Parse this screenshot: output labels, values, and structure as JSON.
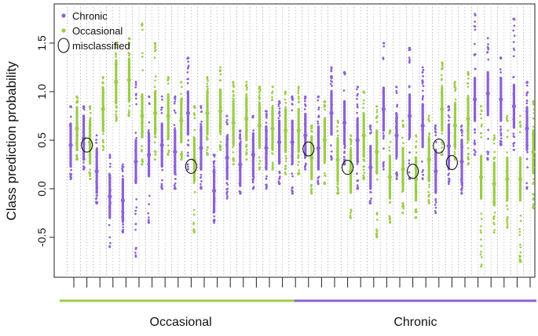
{
  "chart_data": {
    "type": "scatter",
    "title": "",
    "xlabel": "",
    "ylabel": "Class prediction probability",
    "ylim": [
      -0.9,
      1.85
    ],
    "yticks": [
      -0.5,
      0.0,
      0.5,
      1.0,
      1.5
    ],
    "ytick_labels": [
      "-0.5",
      "0.0",
      "0.5",
      "1.0",
      "1.5"
    ],
    "n_columns": 36,
    "grid": "vertical dotted lines per sample",
    "legend": {
      "position": "top-left",
      "entries": [
        {
          "label": "Chronic",
          "color": "#8a63d2",
          "marker": "dot"
        },
        {
          "label": "Occasional",
          "color": "#9ccc4a",
          "marker": "dot"
        },
        {
          "label": "misclassified",
          "color": "#111111",
          "marker": "circle"
        }
      ]
    },
    "groups": [
      {
        "label": "Occasional",
        "color": "#9ccc4a",
        "from_column": 1,
        "to_column": 18
      },
      {
        "label": "Chronic",
        "color": "#8a63d2",
        "from_column": 19,
        "to_column": 36
      }
    ],
    "series": [
      {
        "name": "Chronic",
        "color": "#8a63d2",
        "centers": [
          0.45,
          0.52,
          0.18,
          -0.08,
          -0.12,
          0.28,
          0.35,
          0.45,
          0.38,
          0.78,
          0.42,
          -0.02,
          0.32,
          0.25,
          0.35,
          0.42,
          0.48,
          0.48,
          0.55,
          0.42,
          0.78,
          0.68,
          0.5,
          0.22,
          0.82,
          0.55,
          0.75,
          0.65,
          0.18,
          0.44,
          0.28,
          0.92,
          0.98,
          0.92,
          0.85,
          0.62
        ],
        "ranges": [
          [
            0.1,
            0.85
          ],
          [
            0.2,
            0.85
          ],
          [
            -0.15,
            0.55
          ],
          [
            -0.6,
            0.35
          ],
          [
            -0.45,
            0.25
          ],
          [
            -0.7,
            1.1
          ],
          [
            -0.35,
            0.95
          ],
          [
            0.0,
            0.95
          ],
          [
            0.0,
            0.95
          ],
          [
            0.2,
            1.35
          ],
          [
            0.0,
            0.85
          ],
          [
            -0.35,
            0.35
          ],
          [
            -0.1,
            0.75
          ],
          [
            -0.05,
            0.6
          ],
          [
            0.0,
            0.75
          ],
          [
            0.0,
            0.8
          ],
          [
            0.05,
            0.9
          ],
          [
            -0.05,
            0.95
          ],
          [
            0.2,
            0.95
          ],
          [
            0.05,
            0.95
          ],
          [
            0.3,
            1.25
          ],
          [
            0.25,
            1.2
          ],
          [
            0.0,
            1.05
          ],
          [
            -0.15,
            0.65
          ],
          [
            0.2,
            1.5
          ],
          [
            0.1,
            1.05
          ],
          [
            0.1,
            1.45
          ],
          [
            0.1,
            1.25
          ],
          [
            -0.25,
            0.65
          ],
          [
            0.05,
            0.85
          ],
          [
            -0.05,
            0.65
          ],
          [
            0.35,
            1.8
          ],
          [
            0.3,
            1.55
          ],
          [
            0.45,
            1.35
          ],
          [
            0.4,
            1.75
          ],
          [
            0.0,
            1.1
          ]
        ]
      },
      {
        "name": "Occasional",
        "color": "#9ccc4a",
        "centers": [
          0.62,
          0.48,
          0.82,
          1.1,
          1.12,
          0.75,
          0.78,
          0.75,
          0.7,
          0.3,
          0.78,
          0.8,
          0.68,
          0.72,
          0.65,
          0.62,
          0.6,
          0.6,
          0.32,
          0.5,
          0.3,
          0.18,
          0.55,
          0.38,
          0.12,
          0.2,
          0.1,
          0.3,
          0.82,
          0.65,
          0.72,
          0.12,
          0.05,
          0.1,
          0.1,
          0.38
        ],
        "ranges": [
          [
            0.3,
            0.95
          ],
          [
            0.1,
            0.85
          ],
          [
            0.4,
            1.15
          ],
          [
            0.7,
            1.5
          ],
          [
            0.75,
            1.55
          ],
          [
            0.25,
            1.7
          ],
          [
            0.3,
            1.5
          ],
          [
            0.35,
            1.15
          ],
          [
            0.3,
            1.1
          ],
          [
            -0.45,
            0.85
          ],
          [
            0.35,
            1.15
          ],
          [
            0.4,
            1.25
          ],
          [
            0.25,
            1.1
          ],
          [
            0.3,
            1.1
          ],
          [
            0.2,
            1.05
          ],
          [
            0.2,
            1.05
          ],
          [
            0.15,
            1.0
          ],
          [
            0.15,
            1.05
          ],
          [
            -0.05,
            0.65
          ],
          [
            0.05,
            0.9
          ],
          [
            -0.05,
            0.7
          ],
          [
            -0.3,
            0.55
          ],
          [
            0.1,
            1.0
          ],
          [
            -0.5,
            0.85
          ],
          [
            -0.35,
            0.6
          ],
          [
            -0.25,
            0.7
          ],
          [
            -0.3,
            0.55
          ],
          [
            -0.15,
            0.75
          ],
          [
            0.35,
            1.3
          ],
          [
            0.3,
            1.1
          ],
          [
            0.25,
            1.2
          ],
          [
            -0.8,
            0.85
          ],
          [
            -0.45,
            0.55
          ],
          [
            -0.4,
            0.75
          ],
          [
            -0.75,
            0.75
          ],
          [
            -0.2,
            0.9
          ]
        ]
      }
    ],
    "misclassified": [
      {
        "column": 2,
        "y": 0.45
      },
      {
        "column": 10,
        "y": 0.23
      },
      {
        "column": 19,
        "y": 0.41
      },
      {
        "column": 22,
        "y": 0.22
      },
      {
        "column": 27,
        "y": 0.18
      },
      {
        "column": 29,
        "y": 0.44
      },
      {
        "column": 30,
        "y": 0.27
      }
    ]
  }
}
